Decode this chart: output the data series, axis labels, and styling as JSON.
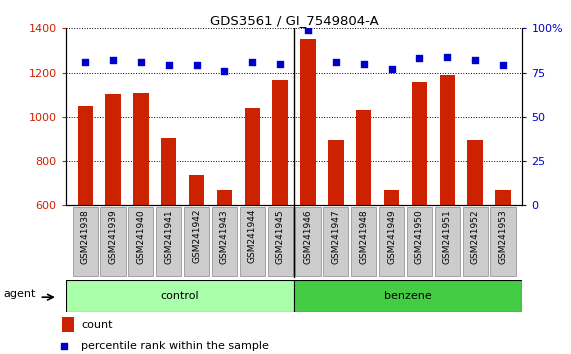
{
  "title": "GDS3561 / GI_7549804-A",
  "samples": [
    "GSM241938",
    "GSM241939",
    "GSM241940",
    "GSM241941",
    "GSM241942",
    "GSM241943",
    "GSM241944",
    "GSM241945",
    "GSM241946",
    "GSM241947",
    "GSM241948",
    "GSM241949",
    "GSM241950",
    "GSM241951",
    "GSM241952",
    "GSM241953"
  ],
  "counts": [
    1050,
    1105,
    1108,
    905,
    735,
    670,
    1040,
    1165,
    1350,
    895,
    1030,
    670,
    1158,
    1190,
    895,
    670
  ],
  "percentiles": [
    81,
    82,
    81,
    79,
    79,
    76,
    81,
    80,
    99,
    81,
    80,
    77,
    83,
    84,
    82,
    79
  ],
  "ylim_left": [
    600,
    1400
  ],
  "ylim_right": [
    0,
    100
  ],
  "yticks_left": [
    600,
    800,
    1000,
    1200,
    1400
  ],
  "yticks_right": [
    0,
    25,
    50,
    75,
    100
  ],
  "bar_color": "#cc2200",
  "dot_color": "#0000cc",
  "control_color": "#aaffaa",
  "benzene_color": "#44cc44",
  "tick_bg_color": "#cccccc",
  "legend_count_color": "#cc2200",
  "legend_pct_color": "#0000cc",
  "n_control": 8,
  "n_benzene": 8
}
